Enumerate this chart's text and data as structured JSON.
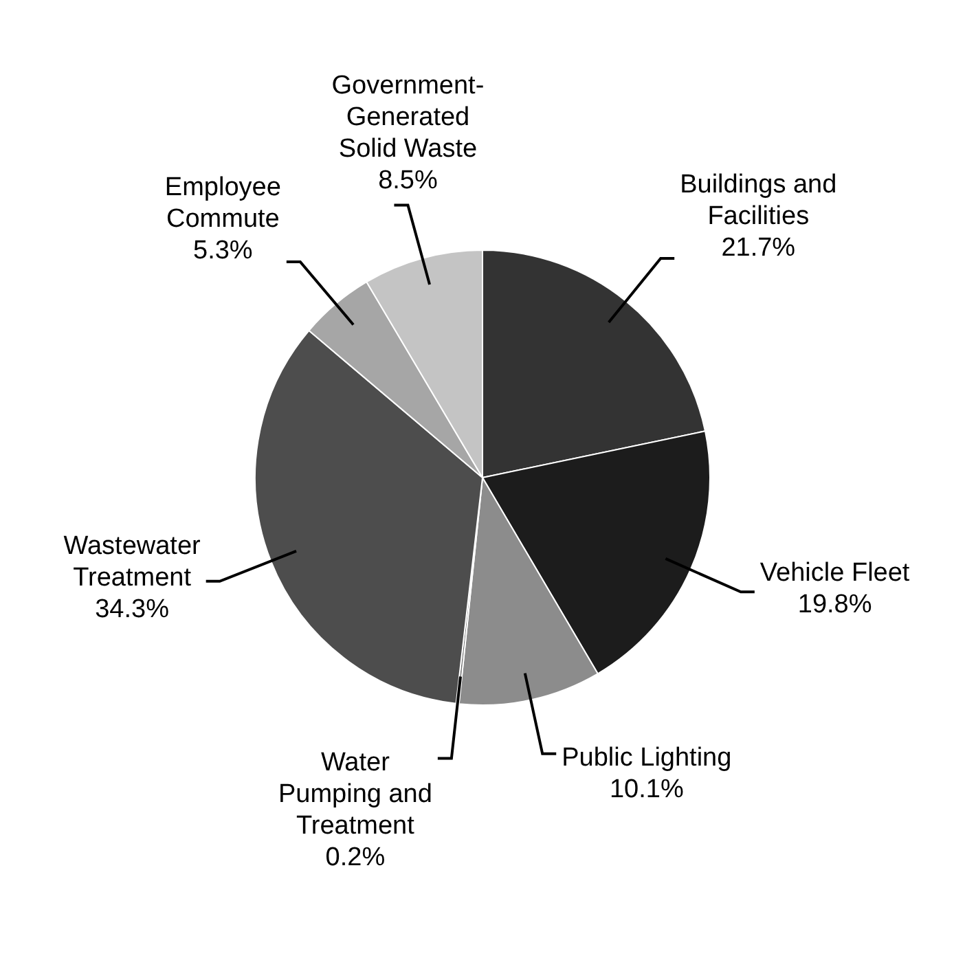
{
  "chart_data": {
    "type": "pie",
    "categories": [
      "Buildings and Facilities",
      "Vehicle Fleet",
      "Public Lighting",
      "Water Pumping and Treatment",
      "Wastewater Treatment",
      "Employee Commute",
      "Government-Generated Solid Waste"
    ],
    "values": [
      21.7,
      19.8,
      10.1,
      0.2,
      34.3,
      5.3,
      8.5
    ],
    "colors": [
      "#333333",
      "#1c1c1c",
      "#8c8c8c",
      "#6e6e6e",
      "#4d4d4d",
      "#a6a6a6",
      "#c4c4c4"
    ],
    "value_labels": [
      "21.7%",
      "19.8%",
      "10.1%",
      "0.2%",
      "34.3%",
      "5.3%",
      "8.5%"
    ],
    "legend": false
  }
}
